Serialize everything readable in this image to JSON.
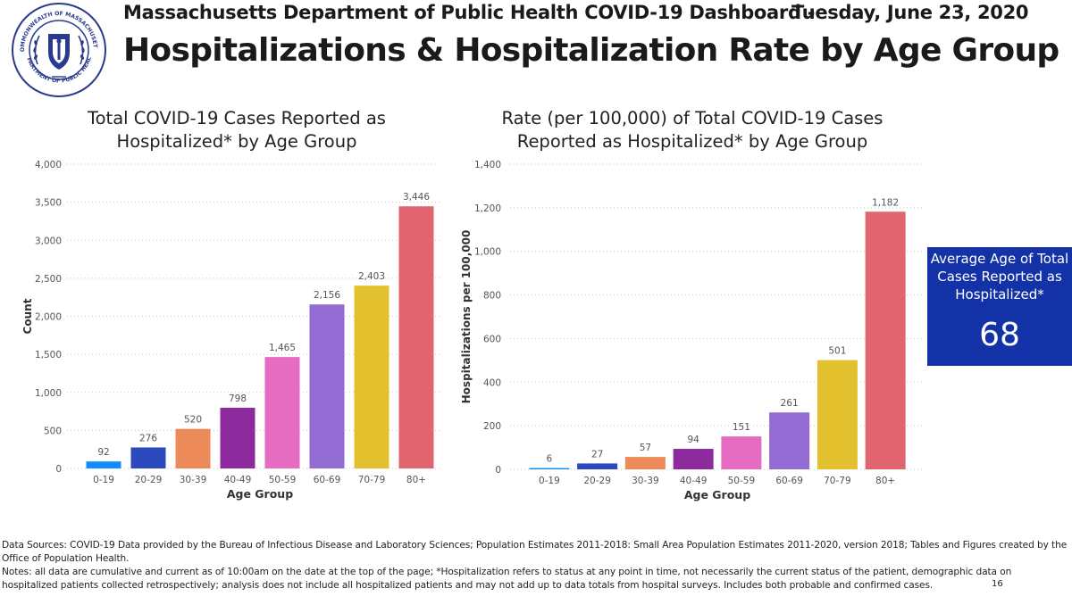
{
  "header": {
    "dashboard_title": "Massachusetts Department of Public Health COVID-19 Dashboard -",
    "date": "Tuesday, June 23, 2020",
    "page_title": "Hospitalizations & Hospitalization Rate by Age Group"
  },
  "seal": {
    "top_text": "COMMONWEALTH OF MASSACHUSETTS",
    "bottom_text": "DEPARTMENT OF PUBLIC HEALTH"
  },
  "bar_colors": [
    "#118dff",
    "#2d49be",
    "#ec8a5a",
    "#8c2a9e",
    "#e66cc1",
    "#926cd3",
    "#e3c12e",
    "#e0656f"
  ],
  "chart_data": [
    {
      "type": "bar",
      "title_line1": "Total COVID-19 Cases Reported as",
      "title_line2": "Hospitalized* by Age Group",
      "xlabel": "Age Group",
      "ylabel": "Count",
      "categories": [
        "0-19",
        "20-29",
        "30-39",
        "40-49",
        "50-59",
        "60-69",
        "70-79",
        "80+"
      ],
      "values": [
        92,
        276,
        520,
        798,
        1465,
        2156,
        2403,
        3446
      ],
      "value_labels": [
        "92",
        "276",
        "520",
        "798",
        "1,465",
        "2,156",
        "2,403",
        "3,446"
      ],
      "ylim": [
        0,
        4000
      ],
      "yticks": [
        0,
        500,
        1000,
        1500,
        2000,
        2500,
        3000,
        3500,
        4000
      ],
      "ytick_labels": [
        "0",
        "500",
        "1,000",
        "1,500",
        "2,000",
        "2,500",
        "3,000",
        "3,500",
        "4,000"
      ],
      "grid": true
    },
    {
      "type": "bar",
      "title_line1": "Rate (per 100,000) of Total COVID-19 Cases",
      "title_line2": "Reported as Hospitalized* by Age Group",
      "xlabel": "Age Group",
      "ylabel": "Hospitalizations per 100,000",
      "categories": [
        "0-19",
        "20-29",
        "30-39",
        "40-49",
        "50-59",
        "60-69",
        "70-79",
        "80+"
      ],
      "values": [
        6,
        27,
        57,
        94,
        151,
        261,
        501,
        1182
      ],
      "value_labels": [
        "6",
        "27",
        "57",
        "94",
        "151",
        "261",
        "501",
        "1,182"
      ],
      "ylim": [
        0,
        1400
      ],
      "yticks": [
        0,
        200,
        400,
        600,
        800,
        1000,
        1200,
        1400
      ],
      "ytick_labels": [
        "0",
        "200",
        "400",
        "600",
        "800",
        "1,000",
        "1,200",
        "1,400"
      ],
      "grid": true
    }
  ],
  "stat": {
    "label_lines": [
      "Average Age of Total",
      "Cases Reported as",
      "Hospitalized*"
    ],
    "value": "68"
  },
  "footer": {
    "sources": "Data Sources: COVID-19 Data provided by the Bureau of Infectious Disease and Laboratory Sciences; Population Estimates 2011-2018: Small Area Population Estimates 2011-2020, version 2018; Tables and Figures created by the Office of Population Health.",
    "notes": "Notes: all data are cumulative and current as of 10:00am on the date at the top of the page; *Hospitalization refers to status at any point in time, not necessarily the current status of the patient, demographic data on hospitalized patients collected retrospectively; analysis does not include all hospitalized patients and may not add up to data totals from hospital surveys. Includes both probable and confirmed cases.",
    "page_number": "16"
  }
}
